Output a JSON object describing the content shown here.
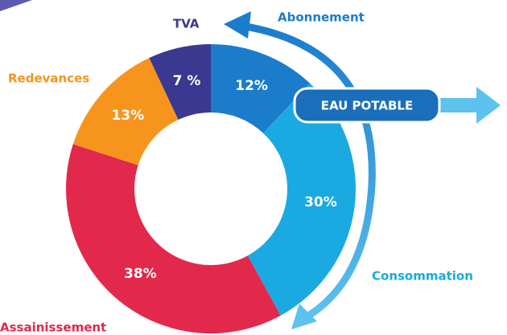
{
  "chart_data": {
    "type": "pie",
    "donut": true,
    "categories": [
      "Abonnement",
      "Consommation",
      "Assainissement",
      "Redevances",
      "TVA"
    ],
    "values": [
      12,
      30,
      38,
      13,
      7
    ],
    "value_labels": [
      "12%",
      "30%",
      "38%",
      "13%",
      "7 %"
    ],
    "colors": [
      "#1b7ccc",
      "#1ba9e1",
      "#e2284b",
      "#f7941d",
      "#3a3890"
    ],
    "annotation": "EAU POTABLE"
  }
}
